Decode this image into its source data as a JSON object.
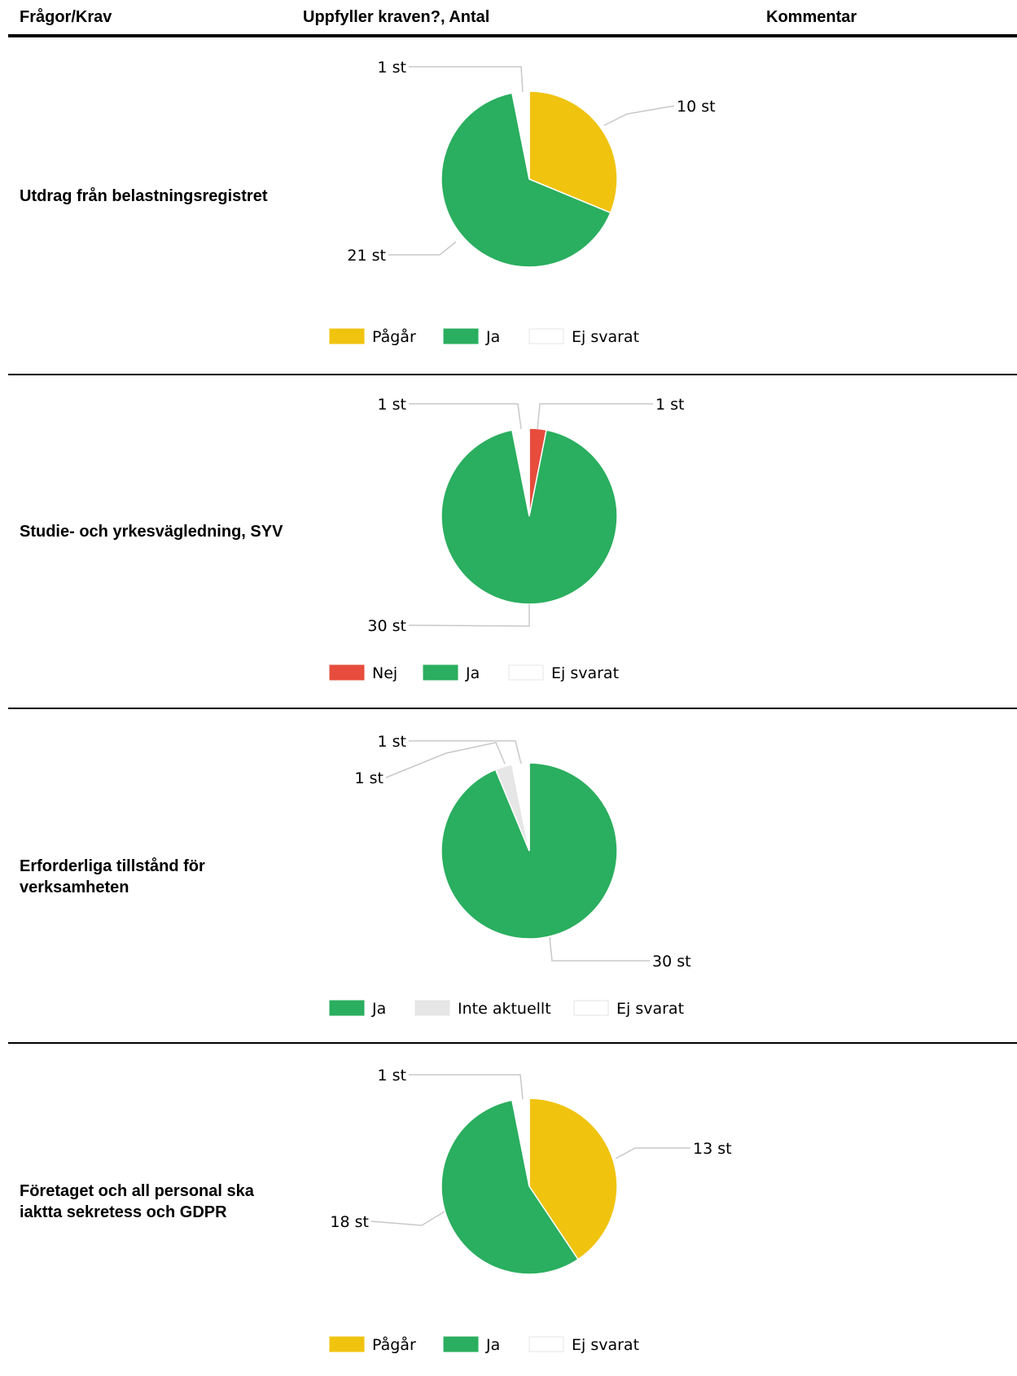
{
  "header": {
    "col1": "Frågor/Krav",
    "col2": "Uppfyller kraven?, Antal",
    "col3": "Kommentar"
  },
  "colors": {
    "Pågår": "#f0c30f",
    "Ja": "#2aae5f",
    "Ej svarat": "#ffffff",
    "Nej": "#e74c3c",
    "Inte aktuellt": "#e6e6e6"
  },
  "rows": [
    {
      "question": "Utdrag från belastningsregistret"
    },
    {
      "question": "Studie- och yrkesvägledning, SYV"
    },
    {
      "question": "Erforderliga tillstånd för verksamheten"
    },
    {
      "question": "Företaget och all personal ska iaktta sekretess och GDPR"
    }
  ],
  "chart_data": [
    {
      "type": "pie",
      "title": "",
      "legend": [
        "Pågår",
        "Ja",
        "Ej svarat"
      ],
      "legend_position": "bottom",
      "slices": [
        {
          "name": "Pågår",
          "value": 10,
          "label": "10 st"
        },
        {
          "name": "Ja",
          "value": 21,
          "label": "21 st"
        },
        {
          "name": "Ej svarat",
          "value": 1,
          "label": "1 st"
        }
      ]
    },
    {
      "type": "pie",
      "title": "",
      "legend": [
        "Nej",
        "Ja",
        "Ej svarat"
      ],
      "legend_position": "bottom",
      "slices": [
        {
          "name": "Nej",
          "value": 1,
          "label": "1 st"
        },
        {
          "name": "Ja",
          "value": 30,
          "label": "30 st"
        },
        {
          "name": "Ej svarat",
          "value": 1,
          "label": "1 st"
        }
      ]
    },
    {
      "type": "pie",
      "title": "",
      "legend": [
        "Ja",
        "Inte aktuellt",
        "Ej svarat"
      ],
      "legend_position": "bottom",
      "slices": [
        {
          "name": "Ja",
          "value": 30,
          "label": "30 st"
        },
        {
          "name": "Inte aktuellt",
          "value": 1,
          "label": "1 st"
        },
        {
          "name": "Ej svarat",
          "value": 1,
          "label": "1 st"
        }
      ]
    },
    {
      "type": "pie",
      "title": "",
      "legend": [
        "Pågår",
        "Ja",
        "Ej svarat"
      ],
      "legend_position": "bottom",
      "slices": [
        {
          "name": "Pågår",
          "value": 13,
          "label": "13 st"
        },
        {
          "name": "Ja",
          "value": 18,
          "label": "18 st"
        },
        {
          "name": "Ej svarat",
          "value": 1,
          "label": "1 st"
        }
      ]
    }
  ]
}
